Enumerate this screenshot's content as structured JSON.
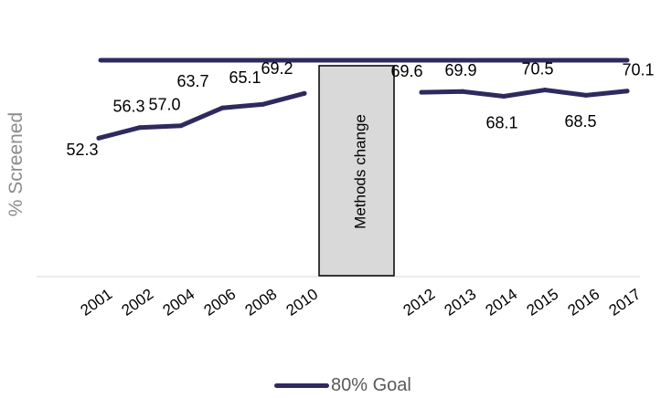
{
  "chart_data": {
    "type": "line",
    "ylabel": "% Screened",
    "xlabel": "",
    "ylim": [
      0,
      100
    ],
    "colors": {
      "series": "#2e2a5f",
      "goal": "#2e2a5f",
      "annotation_fill": "#d9d9d9"
    },
    "categories": [
      "2001",
      "2002",
      "2004",
      "2006",
      "2008",
      "2010",
      "2012",
      "2013",
      "2014",
      "2015",
      "2016",
      "2017"
    ],
    "series": [
      {
        "name": "",
        "segment": 1,
        "x": [
          "2001",
          "2002",
          "2004",
          "2006",
          "2008",
          "2010"
        ],
        "values": [
          52.3,
          56.3,
          57.0,
          63.7,
          65.1,
          69.2
        ]
      },
      {
        "name": "",
        "segment": 2,
        "x": [
          "2012",
          "2013",
          "2014",
          "2015",
          "2016",
          "2017"
        ],
        "values": [
          69.6,
          69.9,
          68.1,
          70.5,
          68.5,
          70.1
        ]
      }
    ],
    "goal": {
      "name": "80% Goal",
      "value": 80
    },
    "annotation": {
      "text": "Methods change",
      "between": [
        "2010",
        "2012"
      ]
    },
    "legend": {
      "position": "bottom",
      "label": "80% Goal"
    },
    "grid": false
  }
}
